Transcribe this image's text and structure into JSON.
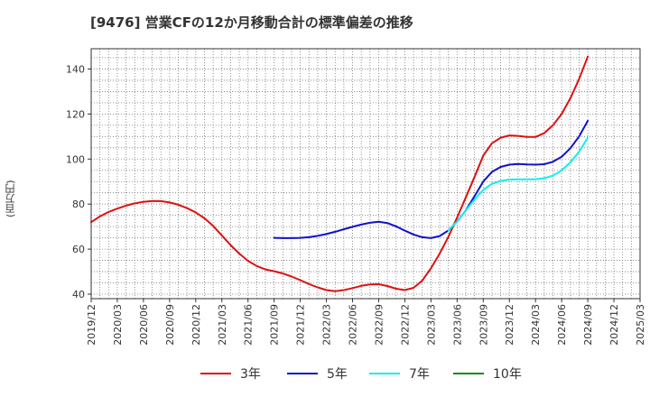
{
  "chart_data": {
    "type": "line",
    "title": "[9476]  営業CFの12か月移動合計の標準偏差の推移",
    "ylabel": "(百万円)",
    "xlabel": "",
    "ylim": [
      38,
      149
    ],
    "yticks": [
      40,
      60,
      80,
      100,
      120,
      140
    ],
    "xticks": [
      "2019/12",
      "2020/03",
      "2020/06",
      "2020/09",
      "2020/12",
      "2021/03",
      "2021/06",
      "2021/09",
      "2021/12",
      "2022/03",
      "2022/06",
      "2022/09",
      "2022/12",
      "2023/03",
      "2023/06",
      "2023/09",
      "2023/12",
      "2024/03",
      "2024/06",
      "2024/09",
      "2024/12",
      "2025/03"
    ],
    "grid": true,
    "legend_position": "bottom",
    "series": [
      {
        "name": "3年",
        "color": "#dd1111",
        "x": [
          "2019/12",
          "2020/01",
          "2020/02",
          "2020/03",
          "2020/04",
          "2020/05",
          "2020/06",
          "2020/07",
          "2020/08",
          "2020/09",
          "2020/10",
          "2020/11",
          "2020/12",
          "2021/01",
          "2021/02",
          "2021/03",
          "2021/04",
          "2021/05",
          "2021/06",
          "2021/07",
          "2021/08",
          "2021/09",
          "2021/10",
          "2021/11",
          "2021/12",
          "2022/01",
          "2022/02",
          "2022/03",
          "2022/04",
          "2022/05",
          "2022/06",
          "2022/07",
          "2022/08",
          "2022/09",
          "2022/10",
          "2022/11",
          "2022/12",
          "2023/01",
          "2023/02",
          "2023/03",
          "2023/04",
          "2023/05",
          "2023/06",
          "2023/07",
          "2023/08",
          "2023/09",
          "2023/10",
          "2023/11",
          "2023/12",
          "2024/01",
          "2024/02",
          "2024/03",
          "2024/04",
          "2024/05",
          "2024/06",
          "2024/07",
          "2024/08",
          "2024/09"
        ],
        "values": [
          72,
          74.5,
          76.5,
          78,
          79.3,
          80.3,
          81,
          81.4,
          81.3,
          80.7,
          79.7,
          78.2,
          76.3,
          73.7,
          70.3,
          66,
          61.8,
          58,
          54.8,
          52.5,
          51,
          50.2,
          49.2,
          47.8,
          46.2,
          44.5,
          43,
          41.8,
          41.3,
          41.8,
          42.7,
          43.7,
          44.3,
          44.4,
          43.6,
          42.4,
          41.8,
          42.8,
          46,
          51.5,
          58,
          65.5,
          74,
          83,
          92,
          101.5,
          107,
          109.5,
          110.5,
          110.3,
          109.8,
          109.8,
          111.5,
          115,
          120,
          127,
          135.5,
          145.5
        ]
      },
      {
        "name": "5年",
        "color": "#1111cc",
        "x": [
          "2021/09",
          "2021/10",
          "2021/11",
          "2021/12",
          "2022/01",
          "2022/02",
          "2022/03",
          "2022/04",
          "2022/05",
          "2022/06",
          "2022/07",
          "2022/08",
          "2022/09",
          "2022/10",
          "2022/11",
          "2022/12",
          "2023/01",
          "2023/02",
          "2023/03",
          "2023/04",
          "2023/05",
          "2023/06",
          "2023/07",
          "2023/08",
          "2023/09",
          "2023/10",
          "2023/11",
          "2023/12",
          "2024/01",
          "2024/02",
          "2024/03",
          "2024/04",
          "2024/05",
          "2024/06",
          "2024/07",
          "2024/08",
          "2024/09"
        ],
        "values": [
          65,
          64.9,
          64.9,
          65,
          65.3,
          65.9,
          66.7,
          67.7,
          68.8,
          69.9,
          70.9,
          71.7,
          72.2,
          71.6,
          70.1,
          68.2,
          66.5,
          65.3,
          64.9,
          65.8,
          68.3,
          72.3,
          77.2,
          83.5,
          90,
          94.3,
          96.5,
          97.5,
          97.8,
          97.6,
          97.5,
          97.7,
          98.8,
          101,
          104.8,
          110,
          117
        ]
      },
      {
        "name": "7年",
        "color": "#11eeee",
        "x": [
          "2023/05",
          "2023/06",
          "2023/07",
          "2023/08",
          "2023/09",
          "2023/10",
          "2023/11",
          "2023/12",
          "2024/01",
          "2024/02",
          "2024/03",
          "2024/04",
          "2024/05",
          "2024/06",
          "2024/07",
          "2024/08",
          "2024/09"
        ],
        "values": [
          68.3,
          72.3,
          77.2,
          82,
          86.3,
          89,
          90.3,
          90.9,
          91,
          91,
          91,
          91.5,
          92.6,
          95,
          98.5,
          103.2,
          109.5
        ]
      },
      {
        "name": "10年",
        "color": "#118811",
        "x": [],
        "values": []
      }
    ]
  }
}
